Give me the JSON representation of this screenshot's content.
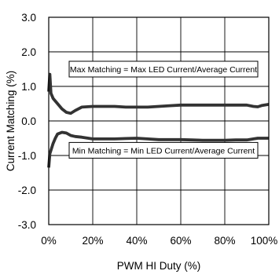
{
  "chart_data": {
    "type": "line",
    "title": "",
    "xlabel": "PWM HI Duty (%)",
    "ylabel": "Current Matching (%)",
    "xlim": [
      0,
      100
    ],
    "ylim": [
      -3.0,
      3.0
    ],
    "x_ticks": [
      0,
      20,
      40,
      60,
      80,
      100
    ],
    "x_tick_labels": [
      "0%",
      "20%",
      "40%",
      "60%",
      "80%",
      "100%"
    ],
    "y_ticks": [
      3.0,
      2.0,
      1.0,
      0.0,
      -1.0,
      -2.0,
      -3.0
    ],
    "y_tick_labels": [
      "3.0",
      "2.0",
      "1.0",
      "0.0",
      "-1.0",
      "-2.0",
      "-3.0"
    ],
    "grid": true,
    "legend": "none",
    "series": [
      {
        "color": "#333333",
        "x": [
          0,
          0.5,
          1,
          2,
          4,
          6,
          8,
          10,
          12,
          15,
          20,
          25,
          30,
          35,
          40,
          45,
          50,
          55,
          60,
          65,
          70,
          75,
          80,
          85,
          90,
          93,
          95,
          97,
          100
        ],
        "y": [
          0.85,
          1.35,
          0.8,
          0.65,
          0.5,
          0.35,
          0.25,
          0.22,
          0.3,
          0.4,
          0.42,
          0.42,
          0.42,
          0.4,
          0.4,
          0.4,
          0.42,
          0.44,
          0.46,
          0.46,
          0.46,
          0.46,
          0.46,
          0.46,
          0.46,
          0.42,
          0.41,
          0.45,
          0.48
        ]
      },
      {
        "color": "#333333",
        "x": [
          0,
          0.5,
          1,
          2,
          3,
          4,
          6,
          8,
          10,
          12,
          15,
          20,
          25,
          30,
          35,
          40,
          45,
          50,
          55,
          60,
          65,
          70,
          75,
          80,
          85,
          90,
          93,
          95,
          100
        ],
        "y": [
          -1.35,
          -0.95,
          -0.85,
          -0.65,
          -0.5,
          -0.38,
          -0.33,
          -0.35,
          -0.42,
          -0.45,
          -0.47,
          -0.52,
          -0.52,
          -0.52,
          -0.51,
          -0.5,
          -0.52,
          -0.54,
          -0.54,
          -0.54,
          -0.55,
          -0.56,
          -0.56,
          -0.56,
          -0.55,
          -0.55,
          -0.52,
          -0.5,
          -0.5
        ]
      }
    ],
    "annotations": [
      {
        "text": "Max Matching = Max LED Current/Average Current",
        "x": 50,
        "y": 1.5
      },
      {
        "text": "Min Matching = Min LED Current/Average Current",
        "x": 50,
        "y": -0.85
      }
    ]
  }
}
